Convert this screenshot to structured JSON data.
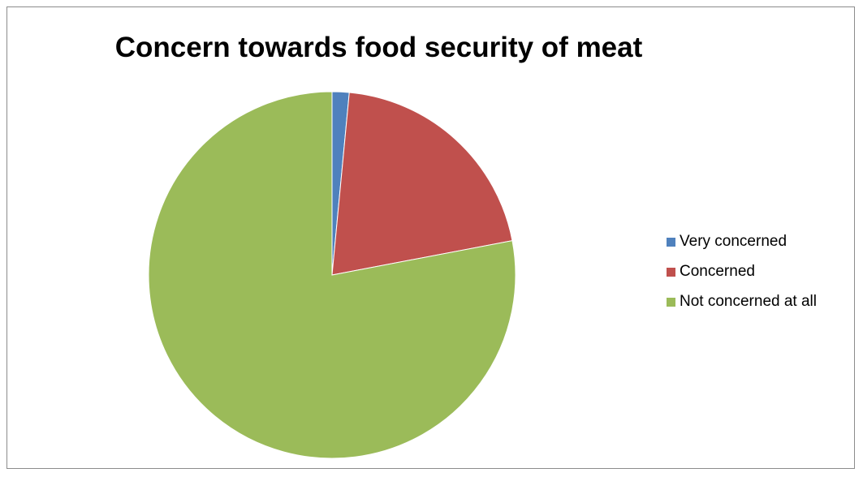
{
  "chart_data": {
    "type": "pie",
    "title": "Concern towards food security of meat",
    "categories": [
      "Very concerned",
      "Concerned",
      "Not concerned at all"
    ],
    "values": [
      1.5,
      20.5,
      78.0
    ],
    "colors": [
      "#4f81bd",
      "#c0504d",
      "#9bbb59"
    ],
    "start_angle_deg": 0,
    "direction": "clockwise",
    "legend_position": "right"
  }
}
